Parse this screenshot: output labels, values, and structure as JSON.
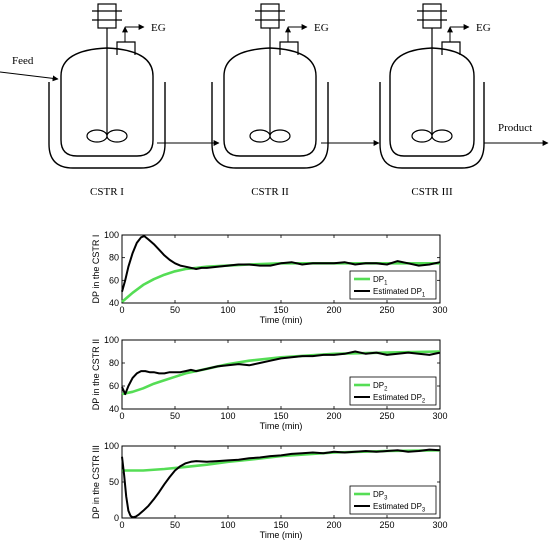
{
  "process": {
    "feed_label": "Feed",
    "product_label": "Product",
    "reactors": [
      {
        "name": "CSTR I",
        "vent_label": "EG"
      },
      {
        "name": "CSTR II",
        "vent_label": "EG"
      },
      {
        "name": "CSTR III",
        "vent_label": "EG"
      }
    ]
  },
  "colors": {
    "measured": "#55dd55",
    "estimated": "#000000",
    "axis": "#000000"
  },
  "chart_data": [
    {
      "type": "line",
      "xlabel": "Time (min)",
      "ylabel": "DP in the CSTR I",
      "xlim": [
        0,
        300
      ],
      "ylim": [
        40,
        100
      ],
      "xticks": [
        "0",
        "50",
        "100",
        "150",
        "200",
        "250",
        "300"
      ],
      "yticks": [
        "40",
        "60",
        "80",
        "100"
      ],
      "legend_position": "bottom-right",
      "series": [
        {
          "name": "DP",
          "sub": "1",
          "x": [
            0,
            10,
            20,
            30,
            40,
            50,
            60,
            70,
            80,
            100,
            120,
            150,
            200,
            250,
            300
          ],
          "y": [
            41,
            49,
            56,
            61,
            65,
            68,
            70,
            71,
            72,
            73,
            74,
            75,
            75,
            75,
            75
          ]
        },
        {
          "name": "Estimated DP",
          "sub": "1",
          "x": [
            0,
            3,
            6,
            10,
            14,
            18,
            21,
            25,
            30,
            35,
            40,
            45,
            50,
            55,
            60,
            65,
            70,
            75,
            80,
            90,
            100,
            110,
            120,
            130,
            140,
            150,
            160,
            170,
            180,
            190,
            200,
            210,
            220,
            230,
            240,
            250,
            260,
            270,
            280,
            290,
            300
          ],
          "y": [
            50,
            60,
            72,
            84,
            93,
            98,
            99,
            96,
            92,
            87,
            82,
            78,
            75,
            73,
            72,
            71,
            70,
            71,
            71,
            72,
            73,
            74,
            74,
            73,
            73,
            75,
            76,
            74,
            75,
            75,
            75,
            76,
            74,
            75,
            75,
            74,
            77,
            75,
            73,
            74,
            76
          ]
        }
      ]
    },
    {
      "type": "line",
      "xlabel": "Time (min)",
      "ylabel": "DP in the CSTR II",
      "xlim": [
        0,
        300
      ],
      "ylim": [
        40,
        100
      ],
      "xticks": [
        "0",
        "50",
        "100",
        "150",
        "200",
        "250",
        "300"
      ],
      "yticks": [
        "40",
        "60",
        "80",
        "100"
      ],
      "legend_position": "bottom-right",
      "series": [
        {
          "name": "DP",
          "sub": "2",
          "x": [
            0,
            10,
            20,
            30,
            40,
            50,
            60,
            70,
            80,
            100,
            120,
            150,
            200,
            250,
            300
          ],
          "y": [
            53,
            55,
            58,
            62,
            65,
            68,
            71,
            73,
            75,
            79,
            82,
            85,
            88,
            89,
            90
          ]
        },
        {
          "name": "Estimated DP",
          "sub": "2",
          "x": [
            0,
            3,
            6,
            10,
            14,
            18,
            22,
            26,
            30,
            35,
            40,
            45,
            50,
            55,
            60,
            65,
            70,
            80,
            90,
            100,
            110,
            120,
            130,
            140,
            150,
            160,
            170,
            180,
            190,
            200,
            210,
            220,
            230,
            240,
            250,
            260,
            270,
            280,
            290,
            300
          ],
          "y": [
            59,
            53,
            60,
            67,
            71,
            73,
            73,
            72,
            72,
            71,
            71,
            72,
            72,
            72,
            73,
            74,
            73,
            75,
            77,
            78,
            79,
            78,
            80,
            82,
            84,
            85,
            86,
            86,
            87,
            87,
            88,
            90,
            88,
            89,
            87,
            88,
            89,
            88,
            87,
            89
          ]
        }
      ]
    },
    {
      "type": "line",
      "xlabel": "Time (min)",
      "ylabel": "DP in the CSTR III",
      "xlim": [
        0,
        300
      ],
      "ylim": [
        0,
        100
      ],
      "xticks": [
        "0",
        "50",
        "100",
        "150",
        "200",
        "250",
        "300"
      ],
      "yticks": [
        "0",
        "50",
        "100"
      ],
      "legend_position": "bottom-right",
      "series": [
        {
          "name": "DP",
          "sub": "3",
          "x": [
            0,
            20,
            40,
            60,
            80,
            100,
            120,
            150,
            200,
            250,
            300
          ],
          "y": [
            66,
            66,
            68,
            71,
            74,
            78,
            81,
            86,
            91,
            93,
            94
          ]
        },
        {
          "name": "Estimated DP",
          "sub": "3",
          "x": [
            0,
            2,
            4,
            6,
            8,
            10,
            13,
            16,
            20,
            25,
            30,
            35,
            40,
            45,
            50,
            55,
            60,
            65,
            70,
            80,
            90,
            100,
            110,
            120,
            130,
            140,
            150,
            160,
            170,
            180,
            190,
            200,
            210,
            220,
            230,
            240,
            250,
            260,
            270,
            280,
            290,
            300
          ],
          "y": [
            85,
            60,
            30,
            10,
            3,
            1,
            2,
            5,
            10,
            17,
            26,
            36,
            47,
            57,
            66,
            72,
            76,
            78,
            79,
            78,
            79,
            80,
            81,
            83,
            84,
            86,
            87,
            89,
            90,
            91,
            90,
            92,
            91,
            92,
            93,
            92,
            93,
            94,
            92,
            93,
            95,
            94
          ]
        }
      ]
    }
  ]
}
